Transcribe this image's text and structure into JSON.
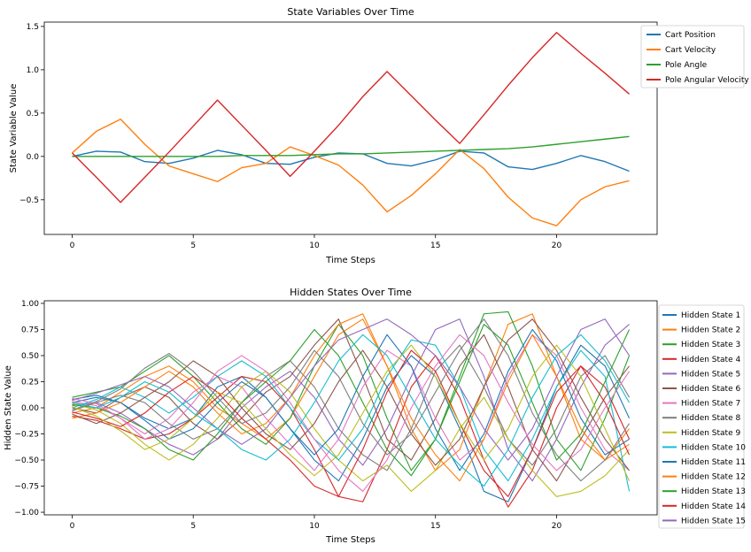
{
  "chart_data": [
    {
      "type": "line",
      "title": "State Variables Over Time",
      "xlabel": "Time Steps",
      "ylabel": "State Variable Value",
      "xlim": [
        -1.15,
        24.15
      ],
      "ylim": [
        -0.9,
        1.55
      ],
      "xticks": [
        0,
        5,
        10,
        15,
        20
      ],
      "xtick_labels": [
        "0",
        "5",
        "10",
        "15",
        "20"
      ],
      "yticks": [
        1.5,
        1.0,
        0.5,
        0.0,
        -0.5
      ],
      "ytick_labels": [
        "1.5",
        "1.0",
        "0.5",
        "0.0",
        "−0.5"
      ],
      "legend_position": "outside-right-top",
      "x": [
        0,
        1,
        2,
        3,
        4,
        5,
        6,
        7,
        8,
        9,
        10,
        11,
        12,
        13,
        14,
        15,
        16,
        17,
        18,
        19,
        20,
        21,
        22,
        23
      ],
      "series": [
        {
          "name": "Cart Position",
          "color": "#1f77b4",
          "values": [
            0.0,
            0.06,
            0.05,
            -0.06,
            -0.08,
            -0.02,
            0.07,
            0.02,
            -0.08,
            -0.09,
            -0.01,
            0.04,
            0.03,
            -0.08,
            -0.11,
            -0.04,
            0.06,
            0.04,
            -0.12,
            -0.15,
            -0.08,
            0.01,
            -0.06,
            -0.17
          ]
        },
        {
          "name": "Cart Velocity",
          "color": "#ff7f0e",
          "values": [
            0.04,
            0.29,
            0.43,
            0.14,
            -0.11,
            -0.2,
            -0.29,
            -0.13,
            -0.08,
            0.11,
            0.01,
            -0.1,
            -0.33,
            -0.64,
            -0.45,
            -0.2,
            0.08,
            -0.14,
            -0.47,
            -0.71,
            -0.8,
            -0.5,
            -0.35,
            -0.28
          ]
        },
        {
          "name": "Pole Angle",
          "color": "#2ca02c",
          "values": [
            0.0,
            0.0,
            0.0,
            0.0,
            0.0,
            0.0,
            0.0,
            0.01,
            0.01,
            0.01,
            0.02,
            0.03,
            0.03,
            0.04,
            0.05,
            0.06,
            0.07,
            0.08,
            0.09,
            0.11,
            0.14,
            0.17,
            0.2,
            0.23
          ]
        },
        {
          "name": "Pole Angular Velocity",
          "color": "#d62728",
          "values": [
            0.04,
            -0.24,
            -0.53,
            -0.24,
            0.05,
            0.35,
            0.65,
            0.36,
            0.07,
            -0.23,
            0.06,
            0.36,
            0.69,
            0.98,
            0.7,
            0.42,
            0.15,
            0.48,
            0.82,
            1.14,
            1.43,
            1.19,
            0.96,
            0.72
          ]
        }
      ]
    },
    {
      "type": "line",
      "title": "Hidden States Over Time",
      "xlabel": "Time Steps",
      "ylabel": "Hidden State Value",
      "xlim": [
        -1.15,
        24.15
      ],
      "ylim": [
        -1.025,
        1.025
      ],
      "xticks": [
        0,
        5,
        10,
        15,
        20
      ],
      "xtick_labels": [
        "0",
        "5",
        "10",
        "15",
        "20"
      ],
      "yticks": [
        1.0,
        0.75,
        0.5,
        0.25,
        0.0,
        -0.25,
        -0.5,
        -0.75,
        -1.0
      ],
      "ytick_labels": [
        "1.00",
        "0.75",
        "0.50",
        "0.25",
        "0.00",
        "−0.25",
        "−0.50",
        "−0.75",
        "−1.00"
      ],
      "legend_position": "outside-right",
      "legend_shown": 15,
      "x": [
        0,
        1,
        2,
        3,
        4,
        5,
        6,
        7,
        8,
        9,
        10,
        11,
        12,
        13,
        14,
        15,
        16,
        17,
        18,
        19,
        20,
        21,
        22,
        23
      ],
      "colors": [
        "#1f77b4",
        "#ff7f0e",
        "#2ca02c",
        "#d62728",
        "#9467bd",
        "#8c564b",
        "#e377c2",
        "#7f7f7f",
        "#bcbd22",
        "#17becf"
      ],
      "series": [
        {
          "name": "Hidden State 1",
          "values": [
            0.05,
            0.1,
            0.05,
            -0.1,
            -0.2,
            -0.1,
            0.2,
            0.3,
            0.1,
            -0.2,
            -0.5,
            -0.7,
            -0.3,
            0.2,
            0.5,
            0.3,
            -0.2,
            -0.8,
            -0.9,
            -0.4,
            0.2,
            0.6,
            0.4,
            -0.1
          ]
        },
        {
          "name": "Hidden State 2",
          "values": [
            -0.05,
            0.0,
            0.15,
            0.3,
            0.4,
            0.25,
            0.0,
            -0.15,
            -0.3,
            -0.1,
            0.3,
            0.7,
            0.85,
            0.4,
            -0.2,
            -0.6,
            -0.4,
            0.2,
            0.8,
            0.9,
            0.3,
            -0.3,
            -0.5,
            -0.2
          ]
        },
        {
          "name": "Hidden State 3",
          "values": [
            0.1,
            0.15,
            0.2,
            0.35,
            0.5,
            0.3,
            0.05,
            -0.2,
            -0.35,
            -0.1,
            0.4,
            0.8,
            0.5,
            -0.1,
            -0.6,
            -0.3,
            0.3,
            0.9,
            0.92,
            0.4,
            -0.3,
            -0.6,
            -0.1,
            0.5
          ]
        },
        {
          "name": "Hidden State 4",
          "values": [
            -0.08,
            -0.12,
            -0.2,
            -0.3,
            -0.25,
            -0.1,
            0.1,
            0.3,
            0.25,
            0.0,
            -0.4,
            -0.85,
            -0.9,
            -0.4,
            0.2,
            0.5,
            0.1,
            -0.5,
            -0.95,
            -0.6,
            0.0,
            0.4,
            0.2,
            -0.3
          ]
        },
        {
          "name": "Hidden State 5",
          "values": [
            0.02,
            0.05,
            -0.05,
            -0.2,
            -0.35,
            -0.45,
            -0.3,
            0.0,
            0.2,
            0.35,
            0.1,
            -0.3,
            -0.55,
            -0.2,
            0.3,
            0.75,
            0.85,
            0.3,
            -0.4,
            -0.7,
            -0.3,
            0.2,
            0.6,
            0.8
          ]
        },
        {
          "name": "Hidden State 6",
          "values": [
            0.0,
            -0.05,
            0.1,
            0.2,
            0.1,
            -0.15,
            -0.3,
            -0.1,
            0.15,
            0.3,
            0.6,
            0.85,
            0.3,
            -0.3,
            -0.5,
            -0.1,
            0.4,
            0.7,
            0.2,
            -0.4,
            -0.7,
            -0.3,
            0.1,
            0.4
          ]
        },
        {
          "name": "Hidden State 7",
          "values": [
            0.06,
            0.02,
            -0.1,
            -0.25,
            -0.1,
            0.15,
            0.3,
            0.2,
            -0.1,
            -0.35,
            -0.6,
            -0.3,
            0.2,
            0.55,
            0.4,
            -0.1,
            -0.5,
            -0.3,
            0.3,
            0.7,
            0.5,
            0.0,
            -0.4,
            -0.6
          ]
        },
        {
          "name": "Hidden State 8",
          "values": [
            -0.03,
            0.05,
            0.12,
            0.05,
            -0.15,
            -0.3,
            -0.2,
            0.05,
            0.3,
            0.45,
            0.2,
            -0.2,
            -0.45,
            -0.6,
            -0.2,
            0.35,
            0.6,
            0.2,
            -0.3,
            -0.55,
            -0.2,
            0.3,
            0.5,
            0.1
          ]
        },
        {
          "name": "Hidden State 9",
          "values": [
            0.04,
            -0.02,
            -0.15,
            -0.35,
            -0.5,
            -0.35,
            -0.1,
            0.2,
            0.35,
            0.15,
            -0.2,
            -0.5,
            -0.7,
            -0.55,
            -0.8,
            -0.6,
            -0.2,
            0.1,
            -0.3,
            -0.6,
            -0.85,
            -0.8,
            -0.65,
            -0.4
          ]
        },
        {
          "name": "Hidden State 10",
          "values": [
            0.0,
            0.08,
            0.2,
            0.1,
            -0.05,
            0.1,
            0.3,
            0.45,
            0.3,
            0.0,
            -0.3,
            -0.5,
            -0.2,
            0.3,
            0.65,
            0.6,
            0.2,
            -0.4,
            -0.7,
            -0.3,
            0.2,
            0.55,
            0.3,
            -0.8
          ]
        },
        {
          "name": "Hidden State 11",
          "values": [
            0.08,
            0.12,
            0.05,
            -0.12,
            -0.3,
            -0.2,
            0.05,
            0.25,
            0.1,
            -0.2,
            -0.45,
            -0.2,
            0.3,
            0.7,
            0.4,
            -0.2,
            -0.6,
            -0.25,
            0.35,
            0.75,
            0.45,
            -0.1,
            -0.45,
            -0.3
          ]
        },
        {
          "name": "Hidden State 12",
          "values": [
            -0.1,
            -0.05,
            0.05,
            0.2,
            0.35,
            0.2,
            -0.05,
            -0.25,
            -0.15,
            0.1,
            0.5,
            0.8,
            0.9,
            0.4,
            -0.1,
            -0.45,
            -0.7,
            -0.3,
            0.25,
            0.7,
            0.3,
            -0.2,
            -0.5,
            -0.35
          ]
        },
        {
          "name": "Hidden State 13",
          "values": [
            0.03,
            0.0,
            -0.08,
            -0.2,
            -0.4,
            -0.5,
            -0.25,
            0.05,
            0.25,
            0.45,
            0.75,
            0.5,
            0.05,
            -0.4,
            -0.65,
            -0.3,
            0.25,
            0.8,
            0.6,
            0.05,
            -0.5,
            -0.25,
            0.25,
            0.75
          ]
        },
        {
          "name": "Hidden State 14",
          "values": [
            -0.04,
            -0.1,
            -0.18,
            -0.05,
            0.15,
            0.3,
            0.15,
            -0.1,
            -0.3,
            -0.5,
            -0.75,
            -0.85,
            -0.4,
            0.15,
            0.55,
            0.35,
            -0.15,
            -0.6,
            -0.85,
            -0.4,
            0.15,
            0.4,
            0.05,
            -0.45
          ]
        },
        {
          "name": "Hidden State 15",
          "values": [
            0.07,
            0.14,
            0.22,
            0.3,
            0.2,
            0.0,
            -0.2,
            -0.35,
            -0.2,
            0.1,
            0.4,
            0.65,
            0.75,
            0.85,
            0.7,
            0.5,
            0.2,
            -0.2,
            -0.5,
            -0.2,
            0.3,
            0.75,
            0.85,
            0.5
          ]
        },
        {
          "name": "",
          "values": [
            -0.06,
            -0.15,
            -0.05,
            0.1,
            0.25,
            0.45,
            0.3,
            0.0,
            -0.25,
            -0.4,
            -0.15,
            0.25,
            0.55,
            0.2,
            -0.25,
            -0.55,
            -0.3,
            0.2,
            0.65,
            0.85,
            0.55,
            0.1,
            -0.3,
            -0.6
          ]
        },
        {
          "name": "",
          "values": [
            0.09,
            0.04,
            -0.1,
            -0.3,
            -0.2,
            0.05,
            0.35,
            0.5,
            0.35,
            0.05,
            -0.3,
            -0.6,
            -0.8,
            -0.5,
            0.0,
            0.4,
            0.7,
            0.5,
            0.05,
            -0.35,
            -0.6,
            -0.4,
            0.0,
            0.35
          ]
        },
        {
          "name": "",
          "values": [
            -0.02,
            0.06,
            0.18,
            0.38,
            0.52,
            0.35,
            0.1,
            -0.15,
            -0.05,
            0.2,
            0.55,
            0.3,
            -0.15,
            -0.45,
            -0.25,
            0.15,
            0.55,
            0.85,
            0.5,
            -0.05,
            -0.45,
            -0.7,
            -0.5,
            -0.15
          ]
        },
        {
          "name": "",
          "values": [
            0.01,
            -0.08,
            -0.22,
            -0.4,
            -0.3,
            -0.1,
            0.15,
            0.05,
            -0.2,
            -0.45,
            -0.65,
            -0.45,
            -0.05,
            0.35,
            0.6,
            0.3,
            -0.15,
            -0.5,
            -0.2,
            0.3,
            0.6,
            0.3,
            -0.2,
            -0.7
          ]
        },
        {
          "name": "",
          "values": [
            0.05,
            0.0,
            0.1,
            0.25,
            0.15,
            -0.05,
            -0.2,
            -0.4,
            -0.5,
            -0.3,
            0.05,
            0.45,
            0.7,
            0.5,
            0.1,
            -0.3,
            -0.55,
            -0.75,
            -0.4,
            0.1,
            0.5,
            0.7,
            0.45,
            0.05
          ]
        }
      ]
    }
  ]
}
